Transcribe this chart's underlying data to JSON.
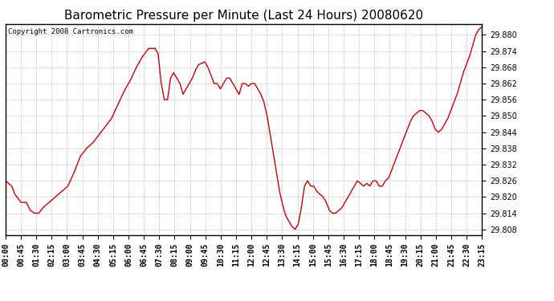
{
  "title": "Barometric Pressure per Minute (Last 24 Hours) 20080620",
  "copyright_text": "Copyright 2008 Cartronics.com",
  "line_color": "#cc0000",
  "background_color": "#ffffff",
  "plot_bg_color": "#ffffff",
  "grid_color": "#c0c0c0",
  "ylim": [
    29.806,
    29.884
  ],
  "yticks": [
    29.808,
    29.814,
    29.82,
    29.826,
    29.832,
    29.838,
    29.844,
    29.85,
    29.856,
    29.862,
    29.868,
    29.874,
    29.88
  ],
  "x_tick_labels": [
    "00:00",
    "00:45",
    "01:30",
    "02:15",
    "03:00",
    "03:45",
    "04:30",
    "05:15",
    "06:00",
    "06:45",
    "07:30",
    "08:15",
    "09:00",
    "09:45",
    "10:30",
    "11:15",
    "12:00",
    "12:45",
    "13:30",
    "14:15",
    "15:00",
    "15:45",
    "16:30",
    "17:15",
    "18:00",
    "18:45",
    "19:30",
    "20:15",
    "21:00",
    "21:45",
    "22:30",
    "23:15"
  ],
  "title_fontsize": 11,
  "tick_fontsize": 7,
  "copyright_fontsize": 6.5,
  "line_width": 1.0,
  "key_points": [
    [
      0,
      29.826
    ],
    [
      30,
      29.824
    ],
    [
      45,
      29.821
    ],
    [
      75,
      29.818
    ],
    [
      100,
      29.818
    ],
    [
      120,
      29.815
    ],
    [
      140,
      29.814
    ],
    [
      160,
      29.814
    ],
    [
      180,
      29.816
    ],
    [
      210,
      29.818
    ],
    [
      240,
      29.82
    ],
    [
      270,
      29.822
    ],
    [
      300,
      29.824
    ],
    [
      330,
      29.829
    ],
    [
      360,
      29.835
    ],
    [
      390,
      29.838
    ],
    [
      420,
      29.84
    ],
    [
      450,
      29.843
    ],
    [
      480,
      29.846
    ],
    [
      510,
      29.849
    ],
    [
      540,
      29.854
    ],
    [
      570,
      29.859
    ],
    [
      600,
      29.863
    ],
    [
      630,
      29.868
    ],
    [
      660,
      29.872
    ],
    [
      690,
      29.875
    ],
    [
      720,
      29.875
    ],
    [
      735,
      29.873
    ],
    [
      750,
      29.862
    ],
    [
      765,
      29.856
    ],
    [
      780,
      29.856
    ],
    [
      795,
      29.864
    ],
    [
      810,
      29.866
    ],
    [
      825,
      29.864
    ],
    [
      840,
      29.862
    ],
    [
      855,
      29.858
    ],
    [
      870,
      29.86
    ],
    [
      885,
      29.862
    ],
    [
      900,
      29.864
    ],
    [
      915,
      29.867
    ],
    [
      930,
      29.869
    ],
    [
      960,
      29.87
    ],
    [
      975,
      29.868
    ],
    [
      990,
      29.865
    ],
    [
      1005,
      29.862
    ],
    [
      1020,
      29.862
    ],
    [
      1035,
      29.86
    ],
    [
      1050,
      29.862
    ],
    [
      1065,
      29.864
    ],
    [
      1080,
      29.864
    ],
    [
      1095,
      29.862
    ],
    [
      1110,
      29.86
    ],
    [
      1125,
      29.858
    ],
    [
      1140,
      29.862
    ],
    [
      1155,
      29.862
    ],
    [
      1170,
      29.861
    ],
    [
      1185,
      29.862
    ],
    [
      1200,
      29.862
    ],
    [
      1215,
      29.86
    ],
    [
      1230,
      29.858
    ],
    [
      1245,
      29.855
    ],
    [
      1260,
      29.85
    ],
    [
      1275,
      29.843
    ],
    [
      1290,
      29.836
    ],
    [
      1305,
      29.829
    ],
    [
      1320,
      29.822
    ],
    [
      1335,
      29.817
    ],
    [
      1350,
      29.813
    ],
    [
      1365,
      29.811
    ],
    [
      1380,
      29.809
    ],
    [
      1395,
      29.808
    ],
    [
      1410,
      29.81
    ],
    [
      1425,
      29.816
    ],
    [
      1440,
      29.824
    ],
    [
      1455,
      29.826
    ],
    [
      1470,
      29.824
    ],
    [
      1485,
      29.824
    ],
    [
      1500,
      29.822
    ],
    [
      1515,
      29.821
    ],
    [
      1530,
      29.82
    ],
    [
      1545,
      29.818
    ],
    [
      1560,
      29.815
    ],
    [
      1575,
      29.814
    ],
    [
      1590,
      29.814
    ],
    [
      1605,
      29.815
    ],
    [
      1620,
      29.816
    ],
    [
      1635,
      29.818
    ],
    [
      1650,
      29.82
    ],
    [
      1665,
      29.822
    ],
    [
      1680,
      29.824
    ],
    [
      1695,
      29.826
    ],
    [
      1710,
      29.825
    ],
    [
      1725,
      29.824
    ],
    [
      1740,
      29.825
    ],
    [
      1755,
      29.824
    ],
    [
      1770,
      29.826
    ],
    [
      1785,
      29.826
    ],
    [
      1800,
      29.824
    ],
    [
      1815,
      29.824
    ],
    [
      1830,
      29.826
    ],
    [
      1845,
      29.827
    ],
    [
      1860,
      29.83
    ],
    [
      1875,
      29.833
    ],
    [
      1890,
      29.836
    ],
    [
      1905,
      29.839
    ],
    [
      1920,
      29.842
    ],
    [
      1935,
      29.845
    ],
    [
      1950,
      29.848
    ],
    [
      1965,
      29.85
    ],
    [
      1980,
      29.851
    ],
    [
      1995,
      29.852
    ],
    [
      2010,
      29.852
    ],
    [
      2025,
      29.851
    ],
    [
      2040,
      29.85
    ],
    [
      2055,
      29.848
    ],
    [
      2070,
      29.845
    ],
    [
      2085,
      29.844
    ],
    [
      2100,
      29.845
    ],
    [
      2115,
      29.847
    ],
    [
      2130,
      29.849
    ],
    [
      2145,
      29.852
    ],
    [
      2160,
      29.855
    ],
    [
      2175,
      29.858
    ],
    [
      2190,
      29.862
    ],
    [
      2205,
      29.866
    ],
    [
      2220,
      29.869
    ],
    [
      2235,
      29.872
    ],
    [
      2250,
      29.876
    ],
    [
      2265,
      29.88
    ],
    [
      2280,
      29.882
    ],
    [
      2295,
      29.883
    ]
  ]
}
